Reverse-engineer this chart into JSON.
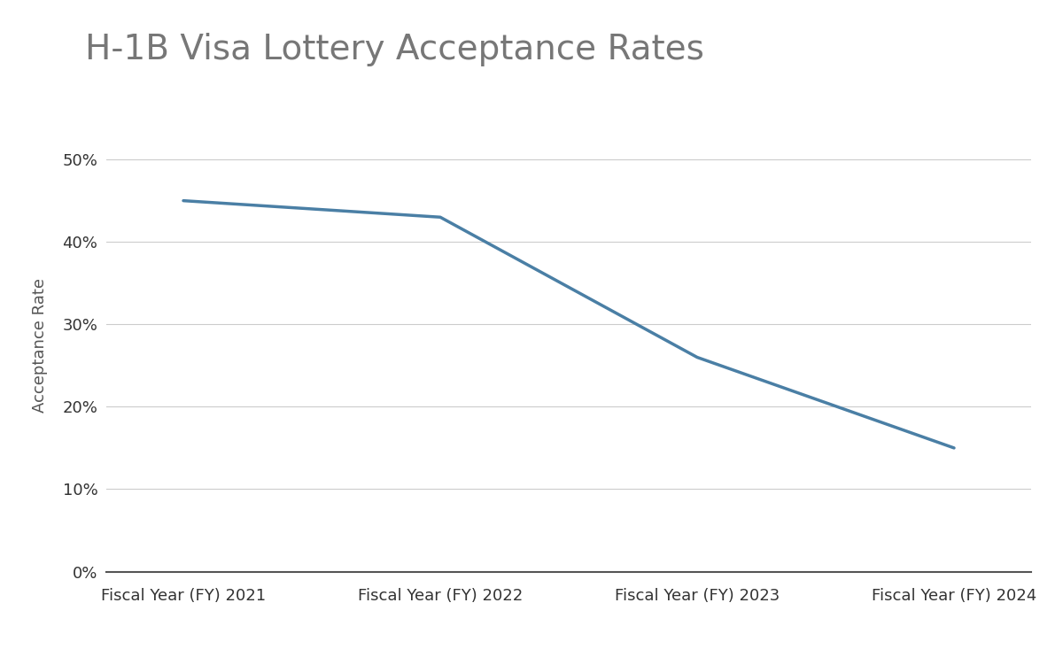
{
  "title": "H-1B Visa Lottery Acceptance Rates",
  "xlabel": "",
  "ylabel": "Acceptance Rate",
  "categories": [
    "Fiscal Year (FY) 2021",
    "Fiscal Year (FY) 2022",
    "Fiscal Year (FY) 2023",
    "Fiscal Year (FY) 2024"
  ],
  "values": [
    0.45,
    0.43,
    0.26,
    0.15
  ],
  "line_color": "#4a7fa5",
  "line_width": 2.5,
  "ylim": [
    0,
    0.55
  ],
  "yticks": [
    0.0,
    0.1,
    0.2,
    0.3,
    0.4,
    0.5
  ],
  "background_color": "#ffffff",
  "title_fontsize": 28,
  "title_color": "#777777",
  "axis_label_fontsize": 13,
  "tick_fontsize": 13,
  "grid_color": "#cccccc",
  "grid_linewidth": 0.8
}
